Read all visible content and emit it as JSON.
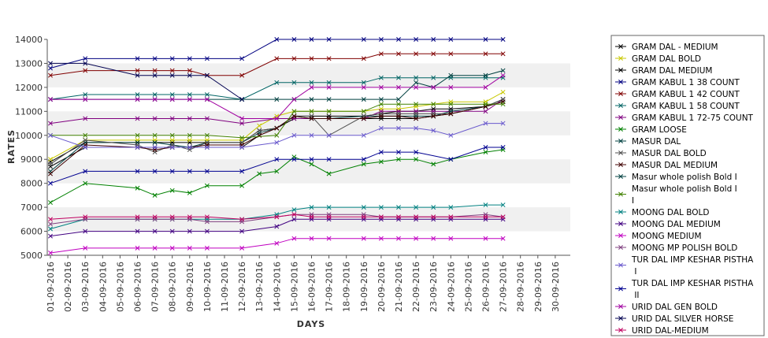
{
  "chart_data": {
    "type": "line",
    "title": "",
    "xlabel": "DAYS",
    "ylabel": "RATES",
    "ylim": [
      5000,
      14000
    ],
    "yticks": [
      5000,
      6000,
      7000,
      8000,
      9000,
      10000,
      11000,
      12000,
      13000,
      14000
    ],
    "grid": "alternating horizontal bands",
    "legend_position": "right",
    "categories": [
      "01-09-2016",
      "02-09-2016",
      "03-09-2016",
      "04-09-2016",
      "05-09-2016",
      "06-09-2016",
      "07-09-2016",
      "08-09-2016",
      "09-09-2016",
      "10-09-2016",
      "11-09-2016",
      "12-09-2016",
      "13-09-2016",
      "14-09-2016",
      "15-09-2016",
      "16-09-2016",
      "17-09-2016",
      "18-09-2016",
      "19-09-2016",
      "20-09-2016",
      "21-09-2016",
      "22-09-2016",
      "23-09-2016",
      "24-09-2016",
      "25-09-2016",
      "26-09-2016",
      "27-09-2016",
      "28-09-2016",
      "29-09-2016",
      "30-09-2016"
    ],
    "series": [
      {
        "name": "GRAM DAL - MEDIUM",
        "color": "#000000",
        "values": [
          8900,
          null,
          9700,
          null,
          null,
          9700,
          9700,
          9700,
          9700,
          9700,
          null,
          9700,
          10200,
          10300,
          10700,
          10700,
          10700,
          null,
          10700,
          10700,
          10700,
          10700,
          10800,
          10900,
          null,
          11200,
          11500,
          null,
          null,
          null
        ]
      },
      {
        "name": "GRAM DAL BOLD",
        "color": "#c8c800",
        "values": [
          9000,
          null,
          9800,
          null,
          null,
          9800,
          9800,
          9800,
          9800,
          9800,
          null,
          9800,
          10400,
          10800,
          11000,
          11000,
          11000,
          null,
          11000,
          11100,
          11100,
          11200,
          11300,
          11400,
          null,
          11400,
          11800,
          null,
          null,
          null
        ]
      },
      {
        "name": "GRAM DAL MEDIUM",
        "color": "#000000",
        "values": [
          8700,
          null,
          9500,
          null,
          null,
          9500,
          9500,
          9500,
          9500,
          9500,
          null,
          9500,
          10000,
          10300,
          10800,
          10800,
          10800,
          null,
          10800,
          10900,
          11000,
          11000,
          11100,
          11100,
          null,
          11200,
          11400,
          null,
          null,
          null
        ]
      },
      {
        "name": "GRAM KABUL 1 38 COUNT",
        "color": "#000080",
        "values": [
          12800,
          null,
          13200,
          null,
          null,
          13200,
          13200,
          13200,
          13200,
          13200,
          null,
          13200,
          null,
          14000,
          14000,
          14000,
          14000,
          null,
          14000,
          14000,
          14000,
          14000,
          14000,
          14000,
          null,
          14000,
          14000,
          null,
          null,
          null
        ]
      },
      {
        "name": "GRAM KABUL 1 42 COUNT",
        "color": "#800000",
        "values": [
          12500,
          null,
          12700,
          null,
          null,
          12700,
          12700,
          12700,
          12700,
          12500,
          null,
          12500,
          null,
          13200,
          13200,
          13200,
          13200,
          null,
          13200,
          13400,
          13400,
          13400,
          13400,
          13400,
          null,
          13400,
          13400,
          null,
          null,
          null
        ]
      },
      {
        "name": "GRAM KABUL 1 58 COUNT",
        "color": "#006464",
        "values": [
          11500,
          null,
          11700,
          null,
          null,
          11700,
          11700,
          11700,
          11700,
          11700,
          null,
          11500,
          null,
          12200,
          12200,
          12200,
          12200,
          null,
          12200,
          12400,
          12400,
          12400,
          12400,
          12400,
          null,
          12400,
          12400,
          null,
          null,
          null
        ]
      },
      {
        "name": "GRAM KABUL 1 72-75 COUNT",
        "color": "#800080",
        "values": [
          10500,
          null,
          10700,
          null,
          null,
          10700,
          10700,
          10700,
          10700,
          10700,
          null,
          10500,
          null,
          10700,
          10700,
          10700,
          10700,
          null,
          10700,
          11000,
          11000,
          11000,
          11000,
          11000,
          null,
          11000,
          11500,
          null,
          null,
          null
        ]
      },
      {
        "name": "GRAM LOOSE",
        "color": "#008000",
        "values": [
          7200,
          null,
          8000,
          null,
          null,
          7800,
          7500,
          7700,
          7600,
          7900,
          null,
          7900,
          8400,
          8500,
          9100,
          8800,
          8400,
          null,
          8800,
          8900,
          9000,
          9000,
          8800,
          9000,
          null,
          9300,
          9400,
          null,
          null,
          null
        ]
      },
      {
        "name": "MASUR DAL",
        "color": "#004040",
        "values": [
          8500,
          null,
          9700,
          null,
          null,
          9700,
          9700,
          9600,
          9500,
          9700,
          null,
          9700,
          10100,
          10300,
          10800,
          10700,
          10700,
          null,
          10800,
          10800,
          10800,
          10800,
          10800,
          11000,
          null,
          11200,
          11500,
          null,
          null,
          null
        ]
      },
      {
        "name": "MASUR DAL BOLD",
        "color": "#505050",
        "values": [
          8800,
          null,
          9800,
          null,
          null,
          9600,
          9300,
          9600,
          9400,
          9700,
          null,
          9700,
          10200,
          10300,
          10800,
          10800,
          10000,
          null,
          10800,
          10900,
          10900,
          10900,
          10900,
          10900,
          null,
          11200,
          11500,
          null,
          null,
          null
        ]
      },
      {
        "name": "MASUR DAL MEDIUM",
        "color": "#400000",
        "values": [
          8400,
          null,
          9600,
          null,
          null,
          9500,
          9400,
          9500,
          9500,
          9600,
          null,
          9600,
          10000,
          10300,
          10800,
          10700,
          10700,
          null,
          10700,
          10800,
          10800,
          10700,
          10800,
          10900,
          null,
          11200,
          11400,
          null,
          null,
          null
        ]
      },
      {
        "name": "Masur whole polish Bold I",
        "color": "#004040",
        "values": [
          11500,
          null,
          11500,
          null,
          null,
          11500,
          11500,
          11500,
          11500,
          11500,
          null,
          11500,
          null,
          11500,
          11500,
          11500,
          11500,
          null,
          11500,
          11500,
          11500,
          12200,
          12000,
          12500,
          null,
          12500,
          12700,
          null,
          null,
          null
        ]
      },
      {
        "name": "Masur whole polish Bold I I",
        "color": "#408000",
        "values": [
          10000,
          null,
          10000,
          null,
          null,
          10000,
          10000,
          10000,
          10000,
          10000,
          null,
          9900,
          null,
          10000,
          11000,
          11000,
          11000,
          null,
          11000,
          11300,
          11300,
          11300,
          11300,
          11300,
          null,
          11300,
          11300,
          null,
          null,
          null
        ]
      },
      {
        "name": "MOONG DAL BOLD",
        "color": "#008080",
        "values": [
          6100,
          null,
          6500,
          null,
          null,
          6500,
          6500,
          6500,
          6500,
          6500,
          null,
          6500,
          null,
          6700,
          6900,
          7000,
          7000,
          null,
          7000,
          7000,
          7000,
          7000,
          7000,
          7000,
          null,
          7100,
          7100,
          null,
          null,
          null
        ]
      },
      {
        "name": "MOONG DAL MEDIUM",
        "color": "#400080",
        "values": [
          5800,
          null,
          6000,
          null,
          null,
          6000,
          6000,
          6000,
          6000,
          6000,
          null,
          6000,
          null,
          6200,
          6500,
          6500,
          6500,
          null,
          6500,
          6500,
          6500,
          6500,
          6500,
          6500,
          null,
          6500,
          6500,
          null,
          null,
          null
        ]
      },
      {
        "name": "MOONG MEDIUM",
        "color": "#c000c0",
        "values": [
          5100,
          null,
          5300,
          null,
          null,
          5300,
          5300,
          5300,
          5300,
          5300,
          null,
          5300,
          null,
          5500,
          5700,
          5700,
          5700,
          null,
          5700,
          5700,
          5700,
          5700,
          5700,
          5700,
          null,
          5700,
          5700,
          null,
          null,
          null
        ]
      },
      {
        "name": "MOONG MP POLISH BOLD",
        "color": "#804080",
        "values": [
          6300,
          null,
          6500,
          null,
          null,
          6500,
          6500,
          6500,
          6500,
          6400,
          null,
          6400,
          null,
          6600,
          6700,
          6700,
          6700,
          null,
          6700,
          6600,
          6600,
          6600,
          6600,
          6600,
          null,
          6700,
          6600,
          null,
          null,
          null
        ]
      },
      {
        "name": "TUR DAL IMP KESHAR PISTHA I",
        "color": "#6a5acd",
        "values": [
          10000,
          null,
          9500,
          null,
          null,
          9500,
          9500,
          9500,
          9500,
          9500,
          null,
          9500,
          null,
          9700,
          10000,
          10000,
          10000,
          null,
          10000,
          10300,
          10300,
          10300,
          10200,
          10000,
          null,
          10500,
          10500,
          null,
          null,
          null
        ]
      },
      {
        "name": "TUR DAL IMP KESHAR PISTHA II",
        "color": "#000090",
        "values": [
          8000,
          null,
          8500,
          null,
          null,
          8500,
          8500,
          8500,
          8500,
          8500,
          null,
          8500,
          null,
          9000,
          9000,
          9000,
          9000,
          null,
          9000,
          9300,
          9300,
          9300,
          null,
          9000,
          null,
          9500,
          9500,
          null,
          null,
          null
        ]
      },
      {
        "name": "URID DAL GEN BOLD",
        "color": "#a000a0",
        "values": [
          11500,
          null,
          11500,
          null,
          null,
          11500,
          11500,
          11500,
          11500,
          11500,
          null,
          10700,
          null,
          10700,
          11500,
          12000,
          12000,
          null,
          12000,
          12000,
          12000,
          12000,
          12000,
          12000,
          null,
          12000,
          12500,
          null,
          null,
          null
        ]
      },
      {
        "name": "URID DAL SILVER HORSE",
        "color": "#000050",
        "values": [
          13000,
          null,
          13000,
          null,
          null,
          12500,
          12500,
          12500,
          12500,
          12500,
          null,
          11500,
          null,
          null,
          null,
          null,
          null,
          null,
          null,
          null,
          null,
          null,
          null,
          null,
          null,
          null,
          null,
          null,
          null,
          null
        ]
      },
      {
        "name": "URID DAL-MEDIUM",
        "color": "#c00060",
        "values": [
          6500,
          null,
          6600,
          null,
          null,
          6600,
          6600,
          6600,
          6600,
          6600,
          null,
          6500,
          null,
          6600,
          6700,
          6600,
          6600,
          null,
          6600,
          6600,
          6600,
          6600,
          6600,
          6600,
          null,
          6600,
          6600,
          null,
          null,
          null
        ]
      }
    ]
  }
}
